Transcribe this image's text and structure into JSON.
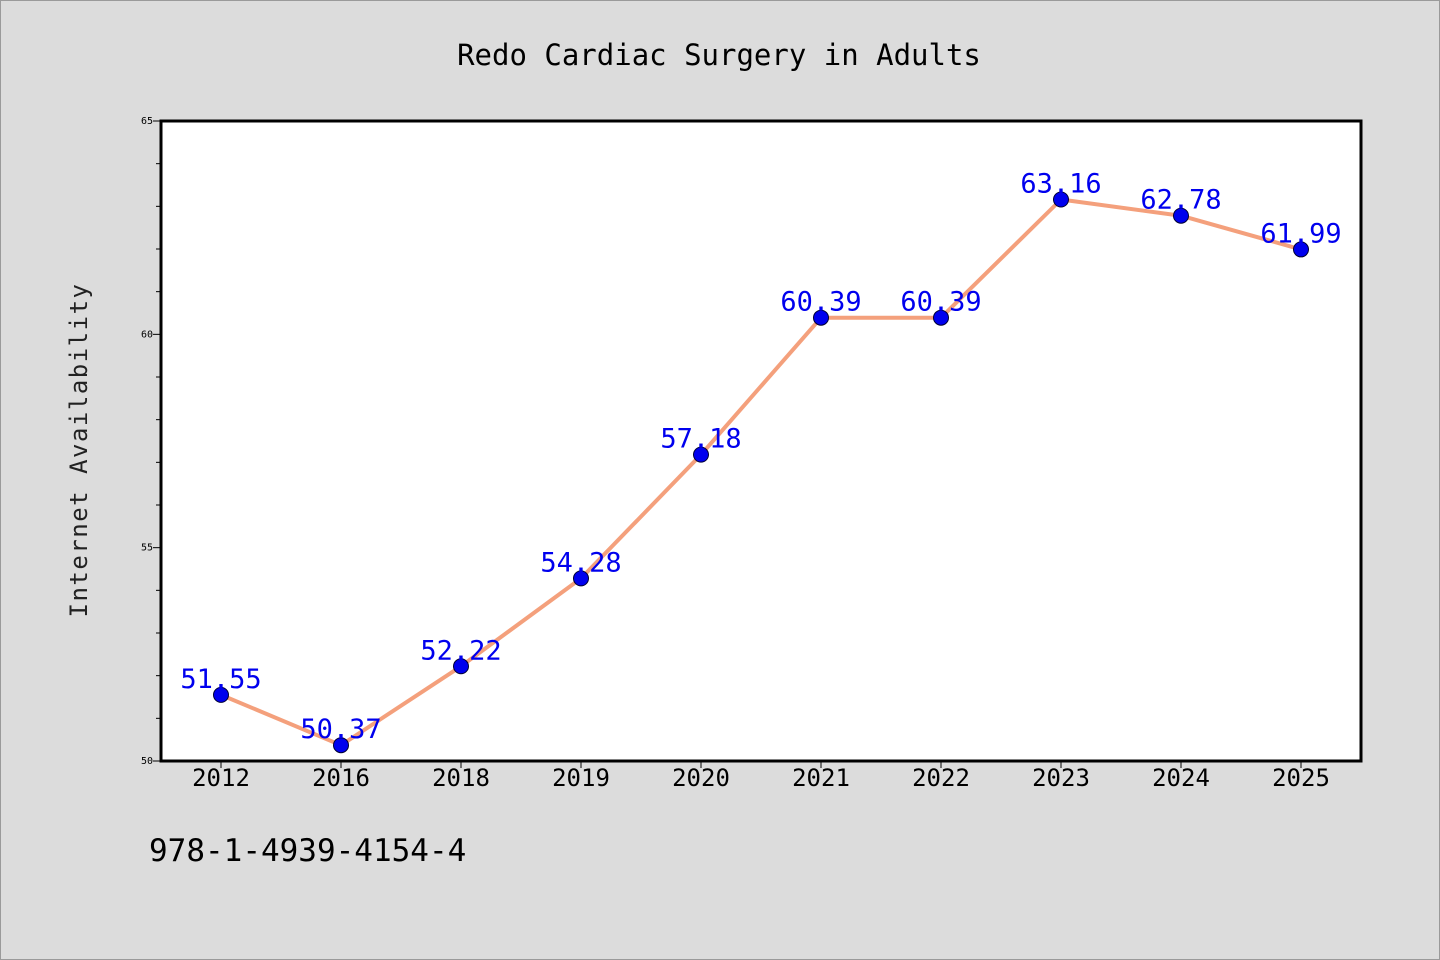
{
  "chart_data": {
    "type": "line",
    "title": "Redo Cardiac Surgery in Adults",
    "xlabel": "",
    "ylabel": "Internet Availability",
    "categories": [
      "2012",
      "2016",
      "2018",
      "2019",
      "2020",
      "2021",
      "2022",
      "2023",
      "2024",
      "2025"
    ],
    "series": [
      {
        "values": [
          51.55,
          50.37,
          52.22,
          54.28,
          57.18,
          60.39,
          60.39,
          63.16,
          62.78,
          61.99
        ],
        "data_labels": [
          "51.55",
          "50.37",
          "52.22",
          "54.28",
          "57.18",
          "60.39",
          "60.39",
          "63.16",
          "62.78",
          "61.99"
        ]
      }
    ],
    "ylim": [
      50,
      65
    ],
    "yticks": [
      "50",
      "55",
      "60",
      "65"
    ],
    "grid": false,
    "legend": "none",
    "colors": {
      "line": "#f4a07c",
      "marker": "#0000ee",
      "data_label": "#0000ee",
      "background": "#dcdcdc",
      "plot_area": "#ffffff"
    }
  },
  "caption": "978-1-4939-4154-4"
}
